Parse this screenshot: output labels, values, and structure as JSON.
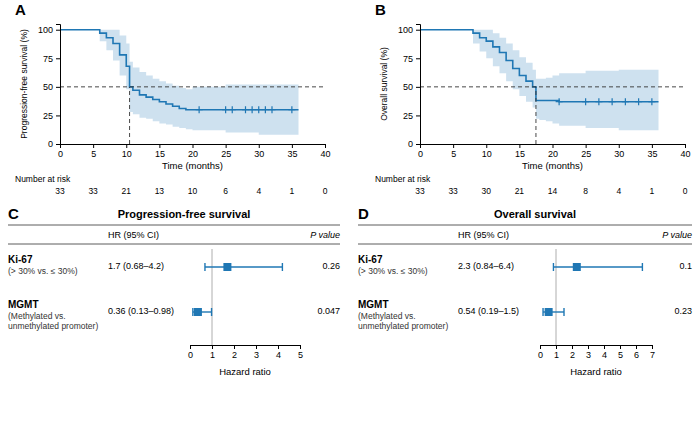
{
  "chart_data": [
    {
      "type": "step",
      "panel_label": "A",
      "x_label": "Time (months)",
      "y_label": "Progression-free survival (%)",
      "xlim": [
        0,
        40
      ],
      "ylim": [
        0,
        105
      ],
      "xticks": [
        0,
        5,
        10,
        15,
        20,
        25,
        30,
        35,
        40
      ],
      "yticks": [
        0,
        25,
        50,
        75,
        100
      ],
      "series": [
        {
          "type": "step",
          "x": [
            0,
            5,
            6,
            7,
            8,
            9,
            10,
            10.5,
            11,
            12,
            13,
            14,
            15,
            16,
            17,
            18,
            19,
            20,
            25,
            30,
            35,
            36
          ],
          "values": [
            100,
            100,
            97,
            93,
            88,
            78,
            68,
            50,
            47,
            43,
            41,
            39,
            37,
            35,
            33,
            31,
            30,
            30,
            30,
            30,
            30,
            30
          ],
          "ci_upper": [
            100,
            100,
            100,
            100,
            100,
            95,
            88,
            72,
            67,
            63,
            60,
            57,
            55,
            53,
            51,
            49,
            48,
            50,
            52,
            52,
            52,
            52
          ],
          "ci_lower": [
            100,
            100,
            90,
            82,
            73,
            60,
            48,
            28,
            26,
            23,
            22,
            20,
            18,
            17,
            15,
            14,
            13,
            12,
            10,
            8,
            8,
            8
          ]
        },
        {
          "type": "scatter",
          "marker": "plus",
          "x": [
            21,
            25,
            26,
            28,
            29,
            30,
            31,
            32,
            35
          ],
          "values": [
            30,
            30,
            30,
            30,
            30,
            30,
            30,
            30,
            30
          ]
        }
      ],
      "reference_x": 10.5,
      "reference_y": 50,
      "risk_label": "Number at risk",
      "risk_x": [
        0,
        5,
        10,
        15,
        20,
        25,
        30,
        35,
        40
      ],
      "risk_n": [
        33,
        33,
        21,
        13,
        10,
        6,
        4,
        1,
        0
      ]
    },
    {
      "type": "step",
      "panel_label": "B",
      "x_label": "Time (months)",
      "y_label": "Overall survival (%)",
      "xlim": [
        0,
        40
      ],
      "ylim": [
        0,
        105
      ],
      "xticks": [
        0,
        5,
        10,
        15,
        20,
        25,
        30,
        35,
        40
      ],
      "yticks": [
        0,
        25,
        50,
        75,
        100
      ],
      "series": [
        {
          "type": "step",
          "x": [
            0,
            7,
            8,
            9,
            10,
            11,
            12,
            13,
            14,
            15,
            16,
            17,
            17.5,
            18,
            19,
            20,
            21,
            25,
            30,
            35,
            36
          ],
          "values": [
            100,
            100,
            97,
            93,
            90,
            85,
            80,
            73,
            66,
            60,
            55,
            50,
            38,
            38,
            38,
            38,
            37,
            37,
            37,
            37,
            37
          ],
          "ci_upper": [
            100,
            100,
            100,
            100,
            100,
            97,
            93,
            88,
            82,
            76,
            71,
            65,
            57,
            57,
            58,
            60,
            62,
            64,
            65,
            65,
            65
          ],
          "ci_lower": [
            100,
            100,
            88,
            81,
            75,
            68,
            62,
            55,
            48,
            42,
            37,
            32,
            22,
            21,
            20,
            18,
            16,
            14,
            12,
            12,
            12
          ]
        },
        {
          "type": "scatter",
          "marker": "plus",
          "x": [
            21,
            25,
            27,
            29,
            31,
            33,
            35
          ],
          "values": [
            37,
            37,
            37,
            37,
            37,
            37,
            37
          ]
        }
      ],
      "reference_x": 17.5,
      "reference_y": 50,
      "risk_label": "Number at risk",
      "risk_x": [
        0,
        5,
        10,
        15,
        20,
        25,
        30,
        35,
        40
      ],
      "risk_n": [
        33,
        33,
        30,
        21,
        14,
        8,
        4,
        1,
        0
      ]
    },
    {
      "type": "forest",
      "panel_label": "C",
      "title": "Progression-free survival",
      "column_labels": [
        "HR (95% CI)",
        "P value"
      ],
      "categories": [
        "Ki-67",
        "MGMT"
      ],
      "sublabels": [
        "(> 30% vs. ≤ 30%)",
        "(Methylated vs.\nunmethylated promoter)"
      ],
      "values": [
        1.7,
        0.36
      ],
      "ci_lower": [
        0.68,
        0.13
      ],
      "ci_upper": [
        4.2,
        0.98
      ],
      "value_labels": [
        "1.7 (0.68–4.2)",
        "0.36 (0.13–0.98)"
      ],
      "p_values": [
        "0.26",
        "0.047"
      ],
      "reference_x": 1,
      "xlim": [
        0,
        5
      ],
      "xticks": [
        0,
        1,
        2,
        3,
        4,
        5
      ],
      "x_label": "Hazard ratio"
    },
    {
      "type": "forest",
      "panel_label": "D",
      "title": "Overall survival",
      "column_labels": [
        "HR (95% CI)",
        "P value"
      ],
      "categories": [
        "Ki-67",
        "MGMT"
      ],
      "sublabels": [
        "(> 30% vs. ≤ 30%)",
        "(Methylated vs.\nunmethylated promoter)"
      ],
      "values": [
        2.3,
        0.54
      ],
      "ci_lower": [
        0.84,
        0.19
      ],
      "ci_upper": [
        6.4,
        1.5
      ],
      "value_labels": [
        "2.3 (0.84–6.4)",
        "0.54 (0.19–1.5)"
      ],
      "p_values": [
        "0.1",
        "0.23"
      ],
      "reference_x": 1,
      "xlim": [
        0,
        7
      ],
      "xticks": [
        0,
        1,
        2,
        3,
        4,
        5,
        6,
        7
      ],
      "x_label": "Hazard ratio"
    }
  ]
}
